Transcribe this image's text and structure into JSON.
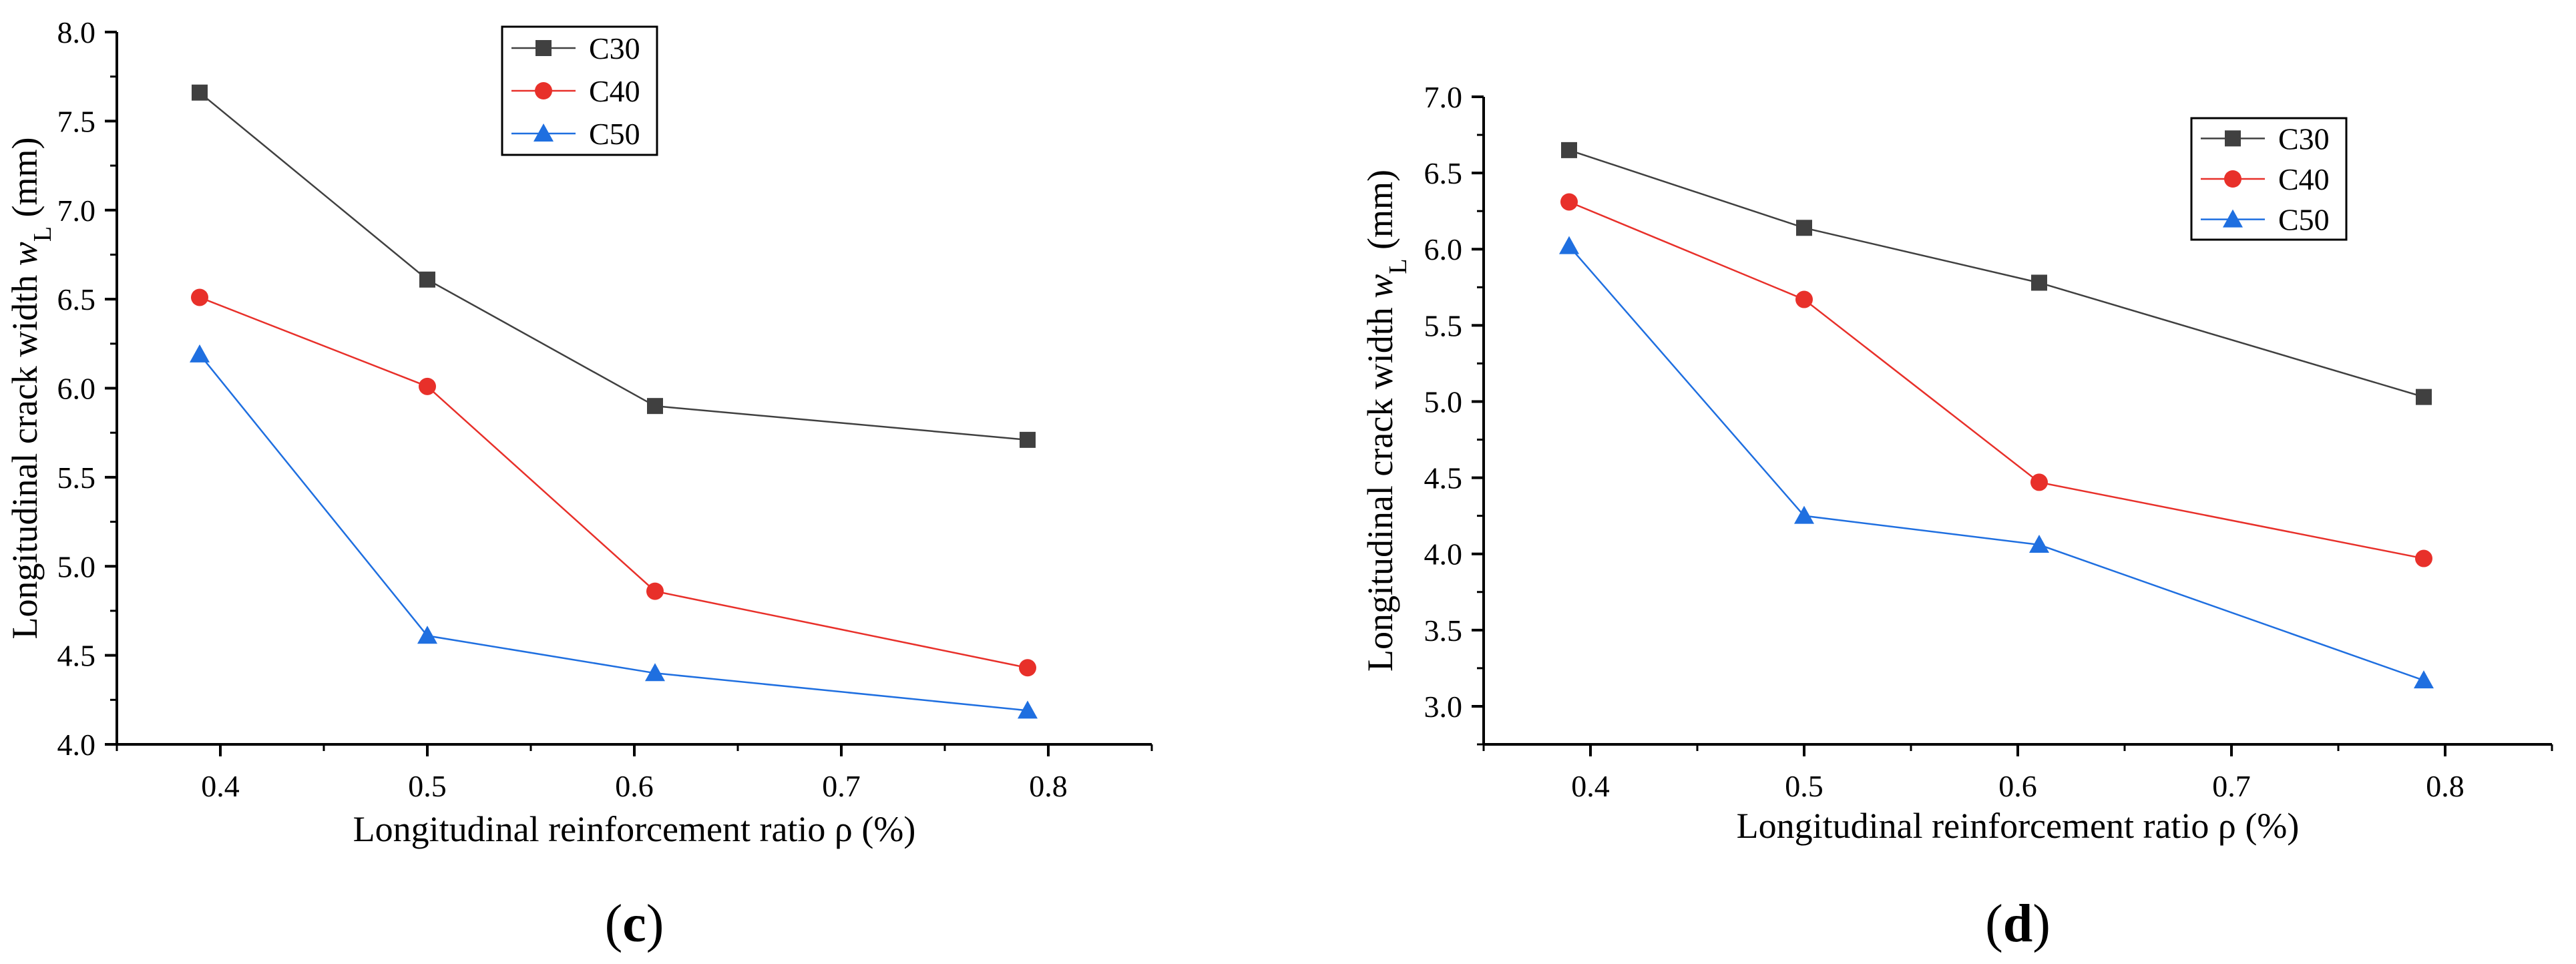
{
  "chart_data": [
    {
      "type": "line",
      "panel_label_open": "(",
      "panel_label": "c",
      "panel_label_close": ")",
      "xlabel": "Longitudinal reinforcement ratio ρ (%)",
      "ylabel": "Longitudinal crack width w",
      "ylabel_sub": "L",
      "ylabel_unit": " (mm)",
      "xlim": [
        0.35,
        0.85
      ],
      "ylim": [
        4.0,
        8.0
      ],
      "xticks": [
        0.4,
        0.5,
        0.6,
        0.7,
        0.8
      ],
      "xtick_labels": [
        "0.4",
        "0.5",
        "0.6",
        "0.7",
        "0.8"
      ],
      "yticks": [
        4.0,
        4.5,
        5.0,
        5.5,
        6.0,
        6.5,
        7.0,
        7.5,
        8.0
      ],
      "ytick_labels": [
        "4.0",
        "4.5",
        "5.0",
        "5.5",
        "6.0",
        "6.5",
        "7.0",
        "7.5",
        "8.0"
      ],
      "legend_position": "top-center",
      "x": [
        0.39,
        0.5,
        0.61,
        0.79
      ],
      "series": [
        {
          "name": "C30",
          "marker": "square",
          "color": "#404040",
          "values": [
            7.66,
            6.61,
            5.9,
            5.71
          ]
        },
        {
          "name": "C40",
          "marker": "circle",
          "color": "#e8302a",
          "values": [
            6.51,
            6.01,
            4.86,
            4.43
          ]
        },
        {
          "name": "C50",
          "marker": "triangle",
          "color": "#1f6fe0",
          "values": [
            6.19,
            4.61,
            4.4,
            4.19
          ]
        }
      ]
    },
    {
      "type": "line",
      "panel_label_open": "(",
      "panel_label": "d",
      "panel_label_close": ")",
      "xlabel": "Longitudinal reinforcement ratio ρ (%)",
      "ylabel": "Longitudinal crack width w",
      "ylabel_sub": "L",
      "ylabel_unit": " (mm)",
      "xlim": [
        0.35,
        0.85
      ],
      "ylim": [
        2.75,
        7.0
      ],
      "xticks": [
        0.4,
        0.5,
        0.6,
        0.7,
        0.8
      ],
      "xtick_labels": [
        "0.4",
        "0.5",
        "0.6",
        "0.7",
        "0.8"
      ],
      "yticks": [
        3.0,
        3.5,
        4.0,
        4.5,
        5.0,
        5.5,
        6.0,
        6.5,
        7.0
      ],
      "ytick_labels": [
        "3.0",
        "3.5",
        "4.0",
        "4.5",
        "5.0",
        "5.5",
        "6.0",
        "6.5",
        "7.0"
      ],
      "legend_position": "top-right",
      "x": [
        0.39,
        0.5,
        0.61,
        0.79
      ],
      "series": [
        {
          "name": "C30",
          "marker": "square",
          "color": "#404040",
          "values": [
            6.65,
            6.14,
            5.78,
            5.03
          ]
        },
        {
          "name": "C40",
          "marker": "circle",
          "color": "#e8302a",
          "values": [
            6.31,
            5.67,
            4.47,
            3.97
          ]
        },
        {
          "name": "C50",
          "marker": "triangle",
          "color": "#1f6fe0",
          "values": [
            6.02,
            4.25,
            4.06,
            3.17
          ]
        }
      ]
    }
  ]
}
